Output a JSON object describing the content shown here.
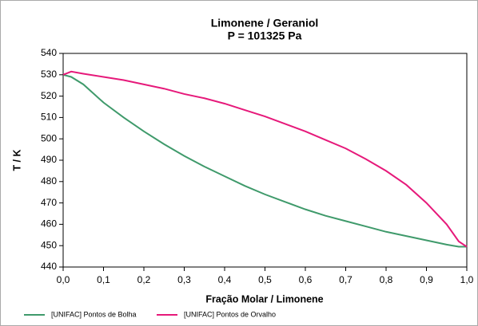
{
  "chart_data": {
    "type": "line",
    "title": "Limonene / Geraniol",
    "subtitle": "P = 101325 Pa",
    "xlabel": "Fração Molar / Limonene",
    "ylabel": "T / K",
    "x": [
      0,
      0.02,
      0.05,
      0.1,
      0.15,
      0.2,
      0.25,
      0.3,
      0.35,
      0.4,
      0.45,
      0.5,
      0.55,
      0.6,
      0.65,
      0.7,
      0.75,
      0.8,
      0.85,
      0.9,
      0.95,
      0.98,
      1.0
    ],
    "series": [
      {
        "name": "[UNIFAC] Pontos de Bolha",
        "color": "#3f9a6b",
        "values": [
          530,
          529,
          525.5,
          517,
          510,
          503.5,
          497.5,
          492,
          487,
          482.5,
          478,
          474,
          470.5,
          467,
          464,
          461.5,
          459,
          456.5,
          454.5,
          452.5,
          450.5,
          449.5,
          449.5
        ]
      },
      {
        "name": "[UNIFAC] Pontos de Orvalho",
        "color": "#e6197a",
        "values": [
          530,
          531.5,
          530.5,
          529,
          527.5,
          525.5,
          523.5,
          521,
          519,
          516.5,
          513.5,
          510.5,
          507,
          503.5,
          499.5,
          495.5,
          490.5,
          485,
          478.5,
          470,
          460,
          452,
          449.5
        ]
      }
    ],
    "xlim": [
      0,
      1
    ],
    "xticks": [
      {
        "value": 0,
        "label": "0,0"
      },
      {
        "value": 0.1,
        "label": "0,1"
      },
      {
        "value": 0.2,
        "label": "0,2"
      },
      {
        "value": 0.3,
        "label": "0,3"
      },
      {
        "value": 0.4,
        "label": "0,4"
      },
      {
        "value": 0.5,
        "label": "0,5"
      },
      {
        "value": 0.6,
        "label": "0,6"
      },
      {
        "value": 0.7,
        "label": "0,7"
      },
      {
        "value": 0.8,
        "label": "0,8"
      },
      {
        "value": 0.9,
        "label": "0,9"
      },
      {
        "value": 1,
        "label": "1,0"
      }
    ],
    "ylim": [
      440,
      540
    ],
    "yticks": [
      440,
      450,
      460,
      470,
      480,
      490,
      500,
      510,
      520,
      530,
      540
    ],
    "grid": false,
    "legend": "bottom"
  }
}
